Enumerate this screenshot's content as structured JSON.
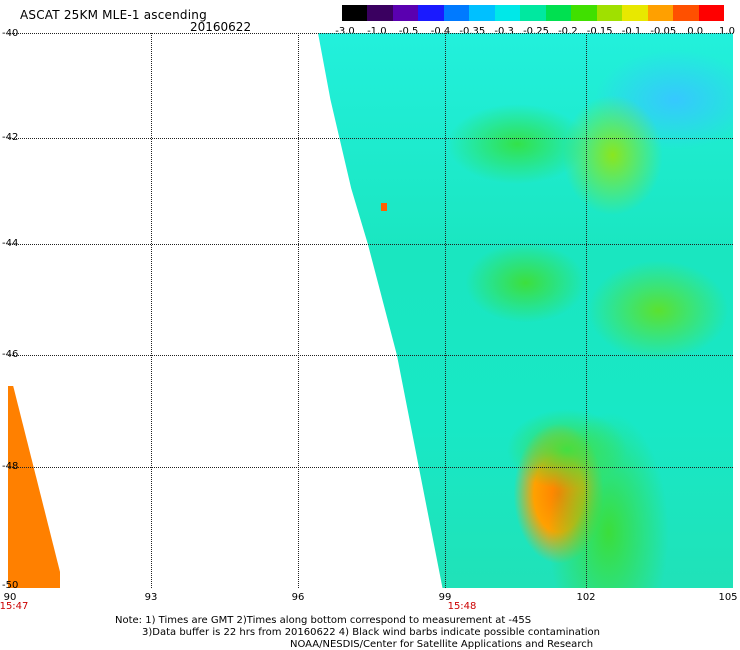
{
  "header": {
    "title": "ASCAT 25KM MLE-1 ascending",
    "date": "20160622"
  },
  "colorbar": {
    "colors": [
      "#000000",
      "#3a0060",
      "#5a00b0",
      "#1a1aff",
      "#007aff",
      "#00c0ff",
      "#00e8e8",
      "#00e8a0",
      "#00e050",
      "#40e000",
      "#a0e000",
      "#e8e800",
      "#ffa000",
      "#ff5000",
      "#ff0000"
    ],
    "labels": [
      "-3.0",
      "-1.0",
      "-0.5",
      "-0.4",
      "-0.35",
      "-0.3",
      "-0.25",
      "-0.2",
      "-0.15",
      "-0.1",
      "-0.05",
      "0.0",
      "1.0"
    ]
  },
  "axes": {
    "lat_labels": [
      "-40",
      "-42",
      "-44",
      "-46",
      "-48",
      "-50"
    ],
    "lon_labels": [
      "90",
      "93",
      "96",
      "99",
      "102",
      "105"
    ],
    "time_labels": [
      "15:47",
      "15:48"
    ]
  },
  "notes": {
    "line1": "Note: 1) Times are GMT 2)Times along bottom correspond to measurement at -45S",
    "line2": "3)Data buffer is 22 hrs from 20160622 4) Black wind barbs indicate possible contamination",
    "line3": "NOAA/NESDIS/Center for Satellite Applications and Research"
  }
}
